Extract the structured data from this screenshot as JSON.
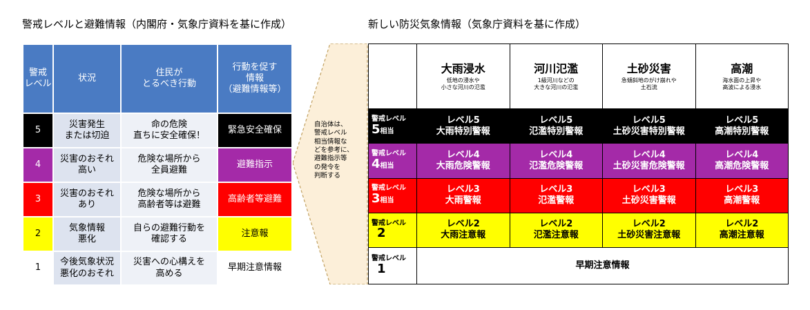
{
  "left": {
    "title": "警戒レベルと避難情報（内閣府・気象庁資料を基に作成）",
    "headers": [
      "警戒\nレベル",
      "状況",
      "住民が\nとるべき行動",
      "行動を促す\n情報\n（避難情報等）"
    ],
    "rows": [
      {
        "level": "5",
        "situation": "災害発生\nまたは切迫",
        "action": "命の危険\n直ちに安全確保！",
        "info": "緊急安全確保",
        "color": "#000000"
      },
      {
        "level": "4",
        "situation": "災害のおそれ\n高い",
        "action": "危険な場所から\n全員避難",
        "info": "避難指示",
        "color": "#a42aa8"
      },
      {
        "level": "3",
        "situation": "災害のおそれ\nあり",
        "action": "危険な場所から\n高齢者等は避難",
        "info": "高齢者等避難",
        "color": "#ff0000"
      },
      {
        "level": "2",
        "situation": "気象情報\n悪化",
        "action": "自らの避難行動を\n確認する",
        "info": "注意報",
        "color": "#ffff00"
      },
      {
        "level": "1",
        "situation": "今後気象状況\n悪化のおそれ",
        "action": "災害への心構えを\n高める",
        "info": "早期注意情報",
        "color": "#ffffff"
      }
    ]
  },
  "arrow_text": "自治体は、\n警戒レベル\n相当情報な\nどを参考に、\n避難指示等\nの発令を\n判断する",
  "right": {
    "title": "新しい防災気象情報（気象庁資料を基に作成）",
    "hazards": [
      {
        "name": "大雨浸水",
        "sub": "低地の浸水や\n小さな河川の氾濫"
      },
      {
        "name": "河川氾濫",
        "sub": "1級河川などの\n大きな河川の氾濫"
      },
      {
        "name": "土砂災害",
        "sub": "急傾斜地のがけ崩れや\n土石流"
      },
      {
        "name": "高潮",
        "sub": "海水面の上昇や\n高波による浸水"
      }
    ],
    "row_label": "警戒レベル",
    "row_suffix": "相当",
    "rows": [
      {
        "level": "5",
        "has_suffix": true,
        "cells": [
          "レベル5\n大雨特別警報",
          "レベル5\n氾濫特別警報",
          "レベル5\n土砂災害特別警報",
          "レベル5\n高潮特別警報"
        ]
      },
      {
        "level": "4",
        "has_suffix": true,
        "cells": [
          "レベル4\n大雨危険警報",
          "レベル4\n氾濫危険警報",
          "レベル4\n土砂災害危険警報",
          "レベル4\n高潮危険警報"
        ]
      },
      {
        "level": "3",
        "has_suffix": true,
        "cells": [
          "レベル3\n大雨警報",
          "レベル3\n氾濫警報",
          "レベル3\n土砂災害警報",
          "レベル3\n高潮警報"
        ]
      },
      {
        "level": "2",
        "has_suffix": false,
        "cells": [
          "レベル2\n大雨注意報",
          "レベル2\n氾濫注意報",
          "レベル2\n土砂災害注意報",
          "レベル2\n高潮注意報"
        ]
      },
      {
        "level": "1",
        "has_suffix": false,
        "merged": "早期注意情報"
      }
    ]
  }
}
